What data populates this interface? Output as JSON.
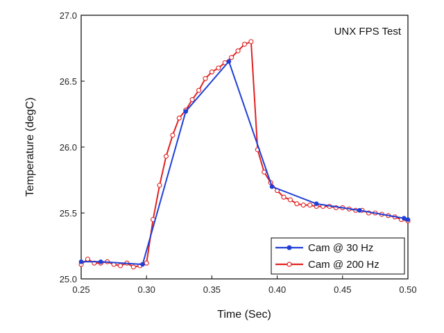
{
  "chart_data": {
    "type": "line",
    "title": "UNX FPS Test",
    "xlabel": "Time (Sec)",
    "ylabel": "Temperature (degC)",
    "xlim": [
      0.25,
      0.5
    ],
    "ylim": [
      25.0,
      27.0
    ],
    "xticks": [
      0.25,
      0.3,
      0.35,
      0.4,
      0.45,
      0.5
    ],
    "yticks": [
      25.0,
      25.5,
      26.0,
      26.5,
      27.0
    ],
    "xtick_labels": [
      "0.25",
      "0.30",
      "0.35",
      "0.40",
      "0.45",
      "0.50"
    ],
    "ytick_labels": [
      "25.0",
      "25.5",
      "26.0",
      "26.5",
      "27.0"
    ],
    "grid": false,
    "legend_position": "bottom-right",
    "series": [
      {
        "name": "Cam @ 30 Hz",
        "color": "#1f3fd6",
        "marker": "filled-circle",
        "x": [
          0.25,
          0.265,
          0.297,
          0.33,
          0.363,
          0.396,
          0.43,
          0.463,
          0.497,
          0.5
        ],
        "y": [
          25.13,
          25.13,
          25.11,
          26.27,
          26.65,
          25.7,
          25.57,
          25.52,
          25.46,
          25.45
        ]
      },
      {
        "name": "Cam @ 200 Hz",
        "color": "#e02020",
        "marker": "open-circle",
        "x": [
          0.25,
          0.255,
          0.26,
          0.265,
          0.27,
          0.275,
          0.28,
          0.285,
          0.29,
          0.295,
          0.3,
          0.305,
          0.31,
          0.315,
          0.32,
          0.325,
          0.33,
          0.335,
          0.34,
          0.345,
          0.35,
          0.355,
          0.36,
          0.365,
          0.37,
          0.375,
          0.38,
          0.385,
          0.39,
          0.395,
          0.4,
          0.405,
          0.41,
          0.415,
          0.42,
          0.425,
          0.43,
          0.435,
          0.44,
          0.445,
          0.45,
          0.455,
          0.46,
          0.465,
          0.47,
          0.475,
          0.48,
          0.485,
          0.49,
          0.495,
          0.5
        ],
        "y": [
          25.11,
          25.15,
          25.12,
          25.12,
          25.13,
          25.11,
          25.1,
          25.12,
          25.09,
          25.1,
          25.12,
          25.45,
          25.71,
          25.93,
          26.09,
          26.22,
          26.28,
          26.36,
          26.43,
          26.52,
          26.57,
          26.6,
          26.64,
          26.68,
          26.73,
          26.78,
          26.8,
          25.98,
          25.81,
          25.73,
          25.67,
          25.62,
          25.6,
          25.57,
          25.56,
          25.56,
          25.55,
          25.55,
          25.55,
          25.54,
          25.54,
          25.53,
          25.52,
          25.52,
          25.5,
          25.5,
          25.49,
          25.48,
          25.47,
          25.45,
          25.44
        ]
      }
    ]
  }
}
